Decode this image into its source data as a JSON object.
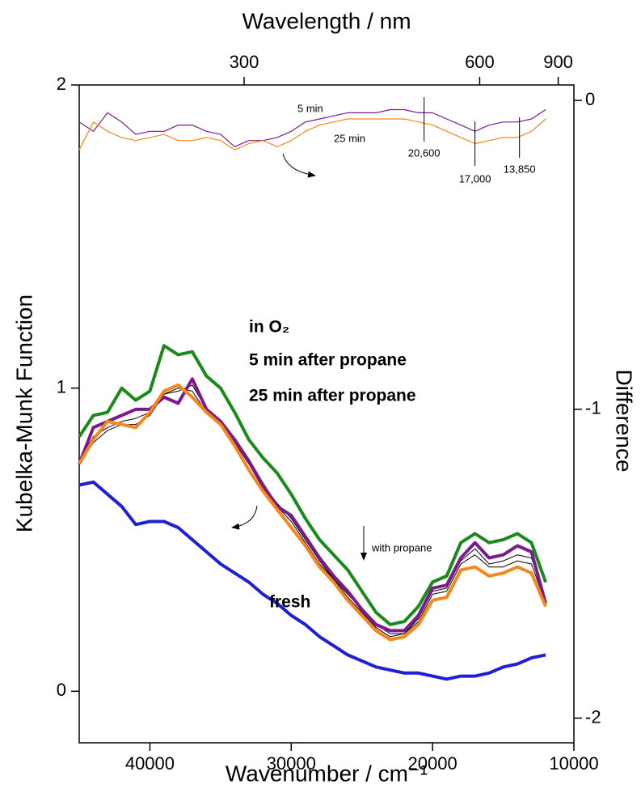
{
  "chart_data": {
    "type": "line",
    "xlabel": "Wavenumber / cm⁻¹",
    "ylabel": "Kubelka-Munk Function",
    "y2label": "Difference",
    "top_axis": {
      "label": "Wavelength / nm",
      "ticks": [
        300,
        600,
        900
      ]
    },
    "x": [
      45000,
      44000,
      43000,
      42000,
      41000,
      40000,
      39000,
      38000,
      37000,
      36000,
      35000,
      34000,
      33000,
      32000,
      31000,
      30000,
      29000,
      28000,
      27000,
      26000,
      25000,
      24000,
      23000,
      22000,
      21000,
      20000,
      19000,
      18000,
      17000,
      16000,
      15000,
      14000,
      13000,
      12000
    ],
    "xlim": [
      45000,
      10000
    ],
    "xticks": [
      40000,
      30000,
      20000,
      10000
    ],
    "ylim": [
      -0.17,
      2
    ],
    "yticks": [
      0,
      1,
      2
    ],
    "y2lim": [
      -2.08,
      0.05
    ],
    "y2ticks": [
      -2,
      -1,
      0
    ],
    "series": [
      {
        "name": "in O₂",
        "color": "#1a8a1a",
        "values": [
          0.84,
          0.91,
          0.92,
          1.0,
          0.96,
          0.99,
          1.14,
          1.11,
          1.12,
          1.04,
          1.0,
          0.92,
          0.83,
          0.77,
          0.72,
          0.65,
          0.57,
          0.5,
          0.45,
          0.4,
          0.33,
          0.26,
          0.22,
          0.23,
          0.28,
          0.36,
          0.38,
          0.49,
          0.52,
          0.49,
          0.5,
          0.52,
          0.49,
          0.36
        ]
      },
      {
        "color": "#000000",
        "values": [
          0.76,
          0.84,
          0.87,
          0.89,
          0.9,
          0.92,
          0.98,
          0.99,
          1.01,
          0.93,
          0.89,
          0.83,
          0.76,
          0.68,
          0.62,
          0.57,
          0.5,
          0.43,
          0.37,
          0.32,
          0.27,
          0.22,
          0.19,
          0.19,
          0.24,
          0.33,
          0.34,
          0.43,
          0.47,
          0.42,
          0.43,
          0.45,
          0.44,
          0.3
        ]
      },
      {
        "color": "#000000",
        "values": [
          0.75,
          0.82,
          0.86,
          0.88,
          0.88,
          0.91,
          0.98,
          1.0,
          0.99,
          0.92,
          0.88,
          0.82,
          0.75,
          0.67,
          0.61,
          0.56,
          0.49,
          0.42,
          0.37,
          0.31,
          0.26,
          0.21,
          0.18,
          0.19,
          0.23,
          0.32,
          0.33,
          0.42,
          0.45,
          0.41,
          0.41,
          0.43,
          0.42,
          0.29
        ]
      },
      {
        "name": "5 min after propane",
        "color": "#7b1a8c",
        "values": [
          0.75,
          0.87,
          0.89,
          0.91,
          0.93,
          0.93,
          0.97,
          0.95,
          1.03,
          0.93,
          0.89,
          0.83,
          0.76,
          0.68,
          0.61,
          0.58,
          0.51,
          0.44,
          0.38,
          0.33,
          0.27,
          0.22,
          0.2,
          0.2,
          0.25,
          0.34,
          0.35,
          0.44,
          0.49,
          0.44,
          0.45,
          0.48,
          0.46,
          0.29
        ]
      },
      {
        "name": "25 min after propane",
        "color": "#f7861b",
        "values": [
          0.75,
          0.83,
          0.89,
          0.88,
          0.87,
          0.92,
          0.99,
          1.01,
          0.97,
          0.92,
          0.88,
          0.81,
          0.73,
          0.66,
          0.6,
          0.54,
          0.48,
          0.41,
          0.36,
          0.3,
          0.25,
          0.2,
          0.17,
          0.18,
          0.22,
          0.3,
          0.31,
          0.4,
          0.41,
          0.38,
          0.39,
          0.41,
          0.39,
          0.28
        ]
      },
      {
        "name": "fresh",
        "color": "#1f1fd6",
        "values": [
          0.68,
          0.69,
          0.65,
          0.61,
          0.55,
          0.56,
          0.56,
          0.54,
          0.5,
          0.46,
          0.42,
          0.39,
          0.36,
          0.32,
          0.29,
          0.25,
          0.22,
          0.18,
          0.15,
          0.12,
          0.1,
          0.08,
          0.07,
          0.06,
          0.06,
          0.05,
          0.04,
          0.05,
          0.05,
          0.06,
          0.08,
          0.09,
          0.11,
          0.12
        ]
      },
      {
        "name": "5 min",
        "color": "#7b1a8c",
        "axis": "y2",
        "values": [
          -0.07,
          -0.1,
          -0.04,
          -0.07,
          -0.11,
          -0.1,
          -0.1,
          -0.08,
          -0.08,
          -0.1,
          -0.11,
          -0.15,
          -0.13,
          -0.13,
          -0.12,
          -0.1,
          -0.07,
          -0.06,
          -0.05,
          -0.04,
          -0.04,
          -0.04,
          -0.03,
          -0.03,
          -0.04,
          -0.04,
          -0.06,
          -0.08,
          -0.1,
          -0.08,
          -0.07,
          -0.07,
          -0.06,
          -0.03
        ]
      },
      {
        "name": "25 min",
        "color": "#f7861b",
        "axis": "y2",
        "values": [
          -0.16,
          -0.07,
          -0.1,
          -0.12,
          -0.13,
          -0.12,
          -0.11,
          -0.13,
          -0.13,
          -0.12,
          -0.13,
          -0.16,
          -0.14,
          -0.13,
          -0.15,
          -0.13,
          -0.1,
          -0.08,
          -0.07,
          -0.06,
          -0.06,
          -0.06,
          -0.06,
          -0.06,
          -0.07,
          -0.08,
          -0.1,
          -0.12,
          -0.14,
          -0.13,
          -0.12,
          -0.12,
          -0.1,
          -0.06
        ]
      }
    ],
    "annotations": [
      {
        "text": "20,600",
        "x": 20600
      },
      {
        "text": "17,000",
        "x": 17000
      },
      {
        "text": "13,850",
        "x": 13850
      },
      {
        "text": "with propane"
      }
    ]
  }
}
